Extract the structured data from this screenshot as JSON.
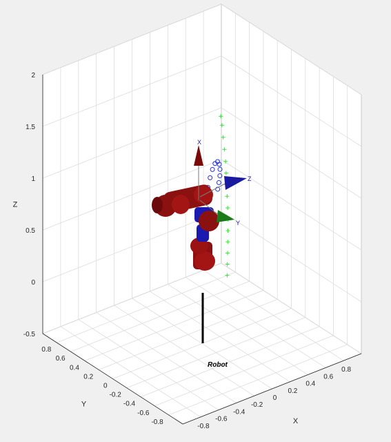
{
  "chart_data": {
    "type": "3d-scatter",
    "title": "",
    "xlabel": "X",
    "ylabel": "Y",
    "zlabel": "Z",
    "xlim": [
      -1,
      1
    ],
    "ylim": [
      -1,
      1
    ],
    "zlim": [
      -0.5,
      2
    ],
    "grid": true,
    "x_ticks": [
      "-0.8",
      "-0.6",
      "-0.4",
      "-0.2",
      "0",
      "0.2",
      "0.4",
      "0.6",
      "0.8"
    ],
    "y_ticks": [
      "-0.8",
      "-0.6",
      "-0.4",
      "-0.2",
      "0",
      "0.2",
      "0.4",
      "0.6",
      "0.8"
    ],
    "z_ticks": [
      "-0.5",
      "0",
      "0.5",
      "1",
      "1.5",
      "2"
    ],
    "series": [
      {
        "marker": "+",
        "color": "#22ee22",
        "points": [
          [
            -0.15,
            -0.55,
            0.45
          ],
          [
            -0.14,
            -0.54,
            0.55
          ],
          [
            -0.13,
            -0.53,
            0.65
          ],
          [
            -0.12,
            -0.52,
            0.75
          ],
          [
            -0.11,
            -0.51,
            0.85
          ],
          [
            -0.1,
            -0.5,
            0.95
          ],
          [
            -0.09,
            -0.48,
            1.05
          ],
          [
            -0.08,
            -0.46,
            1.15
          ],
          [
            -0.07,
            -0.44,
            1.25
          ],
          [
            -0.06,
            -0.42,
            1.35
          ],
          [
            -0.05,
            -0.4,
            1.45
          ],
          [
            -0.04,
            -0.37,
            1.55
          ],
          [
            -0.03,
            -0.34,
            1.65
          ],
          [
            -0.02,
            -0.31,
            1.75
          ],
          [
            -0.01,
            -0.28,
            1.82
          ]
        ]
      },
      {
        "marker": "o",
        "color": "#2233dd",
        "points": [
          [
            0.05,
            -0.02,
            1.0
          ],
          [
            0.09,
            0.0,
            1.07
          ],
          [
            0.14,
            0.03,
            1.12
          ],
          [
            0.2,
            0.07,
            1.14
          ],
          [
            0.26,
            0.11,
            1.12
          ],
          [
            0.31,
            0.15,
            1.06
          ],
          [
            0.35,
            0.19,
            0.98
          ],
          [
            0.38,
            0.23,
            0.89
          ],
          [
            0.4,
            0.27,
            0.8
          ],
          [
            0.41,
            0.3,
            0.72
          ]
        ]
      }
    ],
    "annotations": [
      "Robot",
      "X",
      "Y",
      "Z"
    ]
  },
  "colors": {
    "link": "#8b1010",
    "joint_blue": "#1a1ab0",
    "frame_x": "#7a0a0a",
    "frame_y": "#1a7a1a",
    "frame_z": "#1a1aa0",
    "grid": "#dcdcdc",
    "pane": "#ffffff",
    "background": "#f0f0f0"
  }
}
